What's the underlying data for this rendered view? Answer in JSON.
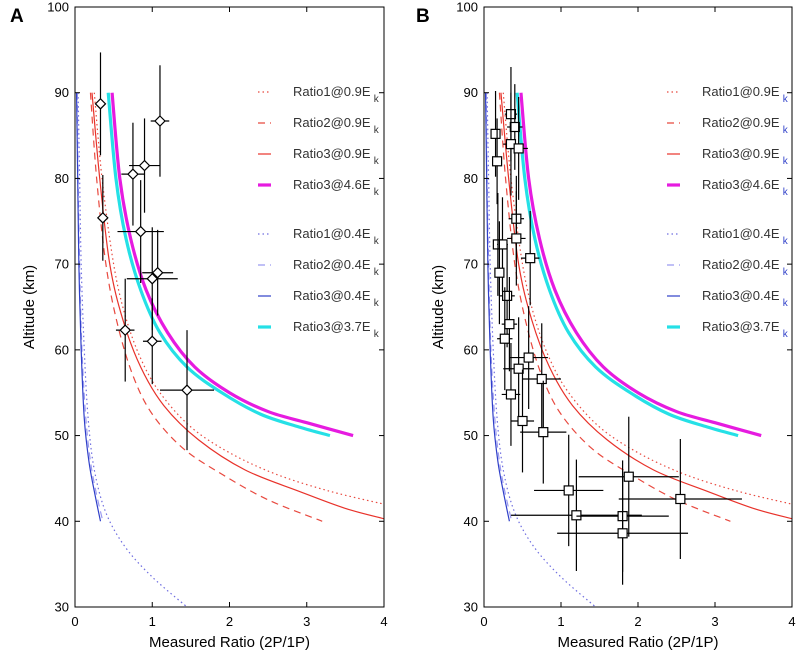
{
  "chart_data": [
    {
      "panel_label": "A",
      "type": "line",
      "xlabel": "Measured Ratio (2P/1P)",
      "ylabel": "Altitude (km)",
      "xlim": [
        0,
        4
      ],
      "ylim": [
        30,
        100
      ],
      "xticks": [
        "0",
        "1",
        "2",
        "3",
        "4"
      ],
      "yticks": [
        "30",
        "40",
        "50",
        "60",
        "70",
        "80",
        "90",
        "100"
      ],
      "grid": false,
      "series": [
        {
          "name": "Ratio1@0.9E",
          "subscript": "k",
          "color": "#e8493f",
          "dash": "dotted",
          "width": 1.2,
          "x": [
            0.25,
            0.35,
            0.5,
            0.65,
            0.85,
            1.1,
            1.5,
            2.0,
            2.6,
            3.3,
            4.0
          ],
          "y": [
            90,
            80,
            70,
            64,
            59,
            55,
            51,
            48,
            45.5,
            43.5,
            42
          ]
        },
        {
          "name": "Ratio2@0.9E",
          "subscript": "k",
          "color": "#e8493f",
          "dash": "dashed",
          "width": 1.2,
          "x": [
            0.2,
            0.28,
            0.4,
            0.55,
            0.75,
            1.0,
            1.4,
            1.9,
            2.5,
            3.2
          ],
          "y": [
            90,
            80,
            70,
            63,
            57,
            52.5,
            48.5,
            45.5,
            42.5,
            40
          ]
        },
        {
          "name": "Ratio3@0.9E",
          "subscript": "k",
          "color": "#e8322a",
          "dash": "solid",
          "width": 1.2,
          "x": [
            0.22,
            0.32,
            0.45,
            0.62,
            0.85,
            1.15,
            1.6,
            2.2,
            2.9,
            3.5,
            4.0
          ],
          "y": [
            90,
            80,
            70,
            63.5,
            58,
            53.5,
            49.5,
            46,
            43.5,
            41.5,
            40.3
          ]
        },
        {
          "name": "Ratio3@4.6E",
          "subscript": "k",
          "color": "#e61be0",
          "dash": "solid",
          "width": 3.2,
          "x": [
            0.48,
            0.58,
            0.72,
            0.92,
            1.2,
            1.55,
            2.0,
            2.5,
            3.0,
            3.6
          ],
          "y": [
            90,
            80,
            73,
            67,
            62,
            58,
            55,
            52.8,
            51.5,
            50
          ]
        },
        {
          "name": "Ratio1@0.4E",
          "subscript": "k",
          "color": "#6f6ee0",
          "dash": "dotted",
          "width": 1.2,
          "x": [
            0.04,
            0.06,
            0.08,
            0.12,
            0.17,
            0.25,
            0.4,
            0.65,
            1.0,
            1.45
          ],
          "y": [
            90,
            80,
            70,
            60,
            52,
            46,
            41,
            37,
            33.5,
            30
          ]
        },
        {
          "name": "Ratio2@0.4E",
          "subscript": "k",
          "color": "#9b9bf0",
          "dash": "dashed",
          "width": 1.2,
          "x": [
            0.03,
            0.04,
            0.06,
            0.09,
            0.14,
            0.2,
            0.27,
            0.36
          ],
          "y": [
            90,
            80,
            70,
            60,
            52,
            47,
            43.5,
            40
          ]
        },
        {
          "name": "Ratio3@0.4E",
          "subscript": "k",
          "color": "#2f3fc9",
          "dash": "solid",
          "width": 1.2,
          "x": [
            0.02,
            0.035,
            0.05,
            0.08,
            0.12,
            0.18,
            0.25,
            0.33
          ],
          "y": [
            90,
            80,
            70,
            60,
            52,
            47,
            43.5,
            40
          ]
        },
        {
          "name": "Ratio3@3.7E",
          "subscript": "k",
          "color": "#25e0e6",
          "dash": "solid",
          "width": 3.2,
          "x": [
            0.43,
            0.53,
            0.66,
            0.85,
            1.1,
            1.45,
            1.9,
            2.4,
            2.9,
            3.3
          ],
          "y": [
            90,
            80,
            73,
            67,
            62,
            58,
            55,
            52.5,
            51,
            50
          ]
        }
      ],
      "measurements": {
        "marker": "diamond",
        "points": [
          {
            "x": 0.33,
            "y": 88.7,
            "xerr": 0.06,
            "yerr": 6.0
          },
          {
            "x": 1.1,
            "y": 86.7,
            "xerr": 0.12,
            "yerr": 6.5
          },
          {
            "x": 0.9,
            "y": 81.5,
            "xerr": 0.2,
            "yerr": 5.5
          },
          {
            "x": 0.75,
            "y": 80.5,
            "xerr": 0.15,
            "yerr": 6.0
          },
          {
            "x": 0.36,
            "y": 75.4,
            "xerr": 0.05,
            "yerr": 5.0
          },
          {
            "x": 0.85,
            "y": 73.8,
            "xerr": 0.3,
            "yerr": 6.0
          },
          {
            "x": 1.07,
            "y": 69.0,
            "xerr": 0.2,
            "yerr": 5.0
          },
          {
            "x": 1.0,
            "y": 68.3,
            "xerr": 0.33,
            "yerr": 6.0
          },
          {
            "x": 0.65,
            "y": 62.3,
            "xerr": 0.12,
            "yerr": 6.0
          },
          {
            "x": 1.0,
            "y": 61.0,
            "xerr": 0.12,
            "yerr": 5.0
          },
          {
            "x": 1.45,
            "y": 55.3,
            "xerr": 0.35,
            "yerr": 7.0
          }
        ]
      }
    },
    {
      "panel_label": "B",
      "type": "line",
      "xlabel": "Measured Ratio (2P/1P)",
      "ylabel": "Altitude (km)",
      "xlim": [
        0,
        4
      ],
      "ylim": [
        30,
        100
      ],
      "xticks": [
        "0",
        "1",
        "2",
        "3",
        "4"
      ],
      "yticks": [
        "30",
        "40",
        "50",
        "60",
        "70",
        "80",
        "90",
        "100"
      ],
      "grid": false,
      "series": [
        {
          "name": "Ratio1@0.9E",
          "subscript": "k",
          "color": "#e8493f",
          "dash": "dotted",
          "width": 1.2,
          "x": [
            0.25,
            0.35,
            0.5,
            0.65,
            0.85,
            1.1,
            1.5,
            2.0,
            2.6,
            3.3,
            4.0
          ],
          "y": [
            90,
            80,
            70,
            64,
            59,
            55,
            51,
            48,
            45.5,
            43.5,
            42
          ]
        },
        {
          "name": "Ratio2@0.9E",
          "subscript": "k",
          "color": "#e8493f",
          "dash": "dashed",
          "width": 1.2,
          "x": [
            0.2,
            0.28,
            0.4,
            0.55,
            0.75,
            1.0,
            1.4,
            1.9,
            2.5,
            3.2
          ],
          "y": [
            90,
            80,
            70,
            63,
            57,
            52.5,
            48.5,
            45.5,
            42.5,
            40
          ]
        },
        {
          "name": "Ratio3@0.9E",
          "subscript": "k",
          "color": "#e8322a",
          "dash": "solid",
          "width": 1.2,
          "x": [
            0.22,
            0.32,
            0.45,
            0.62,
            0.85,
            1.15,
            1.6,
            2.2,
            2.9,
            3.5,
            4.0
          ],
          "y": [
            90,
            80,
            70,
            63.5,
            58,
            53.5,
            49.5,
            46,
            43.5,
            41.5,
            40.3
          ]
        },
        {
          "name": "Ratio3@4.6E",
          "subscript": "k",
          "color": "#e61be0",
          "dash": "solid",
          "width": 3.2,
          "x": [
            0.48,
            0.58,
            0.72,
            0.92,
            1.2,
            1.55,
            2.0,
            2.5,
            3.0,
            3.6
          ],
          "y": [
            90,
            80,
            73,
            67,
            62,
            58,
            55,
            52.8,
            51.5,
            50
          ]
        },
        {
          "name": "Ratio1@0.4E",
          "subscript": "k",
          "color": "#6f6ee0",
          "dash": "dotted",
          "width": 1.2,
          "x": [
            0.04,
            0.06,
            0.08,
            0.12,
            0.17,
            0.25,
            0.4,
            0.65,
            1.0,
            1.45
          ],
          "y": [
            90,
            80,
            70,
            60,
            52,
            46,
            41,
            37,
            33.5,
            30
          ]
        },
        {
          "name": "Ratio2@0.4E",
          "subscript": "k",
          "color": "#9b9bf0",
          "dash": "dashed",
          "width": 1.2,
          "x": [
            0.03,
            0.04,
            0.06,
            0.09,
            0.14,
            0.2,
            0.27,
            0.36
          ],
          "y": [
            90,
            80,
            70,
            60,
            52,
            47,
            43.5,
            40
          ]
        },
        {
          "name": "Ratio3@0.4E",
          "subscript": "k",
          "color": "#2f3fc9",
          "dash": "solid",
          "width": 1.2,
          "x": [
            0.02,
            0.035,
            0.05,
            0.08,
            0.12,
            0.18,
            0.25,
            0.33
          ],
          "y": [
            90,
            80,
            70,
            60,
            52,
            47,
            43.5,
            40
          ]
        },
        {
          "name": "Ratio3@3.7E",
          "subscript": "k",
          "color": "#25e0e6",
          "dash": "solid",
          "width": 3.2,
          "x": [
            0.43,
            0.53,
            0.66,
            0.85,
            1.1,
            1.45,
            1.9,
            2.4,
            2.9,
            3.3
          ],
          "y": [
            90,
            80,
            73,
            67,
            62,
            58,
            55,
            52.5,
            51,
            50
          ]
        }
      ],
      "measurements": {
        "marker": "square",
        "points": [
          {
            "x": 0.35,
            "y": 87.5,
            "xerr": 0.08,
            "yerr": 5.5
          },
          {
            "x": 0.4,
            "y": 86.0,
            "xerr": 0.1,
            "yerr": 5.0
          },
          {
            "x": 0.15,
            "y": 85.2,
            "xerr": 0.04,
            "yerr": 5.0
          },
          {
            "x": 0.35,
            "y": 84.0,
            "xerr": 0.1,
            "yerr": 6.0
          },
          {
            "x": 0.45,
            "y": 83.5,
            "xerr": 0.12,
            "yerr": 6.0
          },
          {
            "x": 0.17,
            "y": 82.0,
            "xerr": 0.04,
            "yerr": 5.0
          },
          {
            "x": 0.42,
            "y": 75.3,
            "xerr": 0.1,
            "yerr": 5.0
          },
          {
            "x": 0.42,
            "y": 73.0,
            "xerr": 0.12,
            "yerr": 5.5
          },
          {
            "x": 0.18,
            "y": 72.3,
            "xerr": 0.05,
            "yerr": 6.0
          },
          {
            "x": 0.24,
            "y": 72.3,
            "xerr": 0.07,
            "yerr": 5.5
          },
          {
            "x": 0.6,
            "y": 70.7,
            "xerr": 0.12,
            "yerr": 5.5
          },
          {
            "x": 0.2,
            "y": 69.0,
            "xerr": 0.05,
            "yerr": 6.0
          },
          {
            "x": 0.3,
            "y": 66.3,
            "xerr": 0.1,
            "yerr": 6.0
          },
          {
            "x": 0.33,
            "y": 63.0,
            "xerr": 0.1,
            "yerr": 5.5
          },
          {
            "x": 0.27,
            "y": 61.3,
            "xerr": 0.1,
            "yerr": 6.0
          },
          {
            "x": 0.58,
            "y": 59.1,
            "xerr": 0.25,
            "yerr": 6.0
          },
          {
            "x": 0.45,
            "y": 57.8,
            "xerr": 0.2,
            "yerr": 6.0
          },
          {
            "x": 0.75,
            "y": 56.6,
            "xerr": 0.25,
            "yerr": 6.5
          },
          {
            "x": 0.35,
            "y": 54.8,
            "xerr": 0.12,
            "yerr": 6.0
          },
          {
            "x": 0.5,
            "y": 51.7,
            "xerr": 0.15,
            "yerr": 6.0
          },
          {
            "x": 0.77,
            "y": 50.4,
            "xerr": 0.3,
            "yerr": 6.0
          },
          {
            "x": 1.88,
            "y": 45.2,
            "xerr": 0.65,
            "yerr": 7.0
          },
          {
            "x": 1.1,
            "y": 43.6,
            "xerr": 0.45,
            "yerr": 6.5
          },
          {
            "x": 2.55,
            "y": 42.6,
            "xerr": 0.8,
            "yerr": 7.0
          },
          {
            "x": 1.2,
            "y": 40.7,
            "xerr": 0.85,
            "yerr": 6.5
          },
          {
            "x": 1.8,
            "y": 40.6,
            "xerr": 0.6,
            "yerr": 6.5
          },
          {
            "x": 1.8,
            "y": 38.6,
            "xerr": 0.85,
            "yerr": 6.0
          }
        ]
      }
    }
  ]
}
